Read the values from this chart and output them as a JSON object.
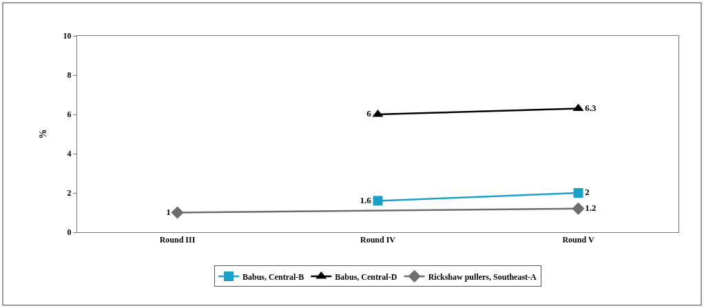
{
  "chart_data": {
    "type": "line",
    "ylabel": "%",
    "categories": [
      "Round III",
      "Round IV",
      "Round V"
    ],
    "series": [
      {
        "name": "Babus, Central-B",
        "color": "#1ba1c9",
        "marker": "square",
        "values": [
          null,
          1.6,
          2
        ]
      },
      {
        "name": "Babus, Central-D",
        "color": "#000000",
        "marker": "triangle",
        "values": [
          null,
          6,
          6.3
        ]
      },
      {
        "name": "Rickshaw pullers, Southeast-A",
        "color": "#6e6e6e",
        "marker": "diamond",
        "values": [
          1,
          null,
          1.2
        ]
      }
    ],
    "ylim": [
      0,
      10
    ],
    "yticks": [
      0,
      2,
      4,
      6,
      8,
      10
    ],
    "legend": "bottom",
    "data_labels": true
  }
}
